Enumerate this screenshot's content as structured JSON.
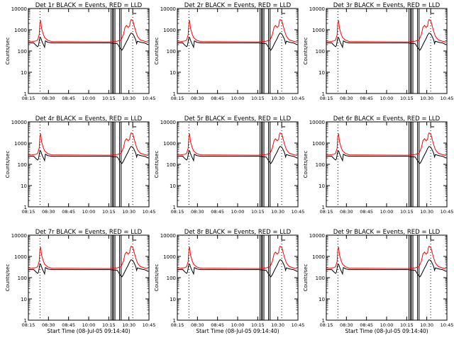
{
  "chart_data": {
    "type": "line",
    "yscale": "log",
    "ylim": [
      1,
      10000
    ],
    "yticks": [
      1,
      10,
      100,
      1000,
      10000
    ],
    "ytick_labels": [
      "1",
      "10",
      "100",
      "1000",
      "10000"
    ],
    "ylabel": "Counts/sec",
    "xlim_hours": [
      8.25,
      10.85
    ],
    "xtick_labels": [
      "08:15",
      "08:30",
      "08:45",
      "10:00",
      "10:15",
      "10:30",
      "10:45"
    ],
    "xlabel": "Start Time (08-Jul-05 09:14:40)",
    "colors": {
      "events": "#000000",
      "lld": "#ff0000"
    },
    "dotted_lines_at": [
      "08:30",
      "10:30"
    ],
    "panels": [
      {
        "title": "Det 1r BLACK = Events, RED = LLD",
        "show_xlabel": false
      },
      {
        "title": "Det 2r BLACK = Events, RED = LLD",
        "show_xlabel": false
      },
      {
        "title": "Det 3r BLACK = Events, RED = LLD",
        "show_xlabel": false
      },
      {
        "title": "Det 4r BLACK = Events, RED = LLD",
        "show_xlabel": false
      },
      {
        "title": "Det 5r BLACK = Events, RED = LLD",
        "show_xlabel": false
      },
      {
        "title": "Det 6r BLACK = Events, RED = LLD",
        "show_xlabel": false
      },
      {
        "title": "Det 7r BLACK = Events, RED = LLD",
        "show_xlabel": true
      },
      {
        "title": "Det 8r BLACK = Events, RED = LLD",
        "show_xlabel": true
      },
      {
        "title": "Det 9r BLACK = Events, RED = LLD",
        "show_xlabel": true
      }
    ],
    "series": [
      {
        "name": "LLD",
        "color": "#ff0000",
        "x": [
          "08:15",
          "08:20",
          "08:25",
          "08:27",
          "08:29",
          "08:30",
          "08:31",
          "08:32",
          "08:34",
          "08:36",
          "08:40",
          "08:45",
          "09:55",
          "10:00",
          "10:05",
          "10:10",
          "10:15",
          "10:18",
          "10:20",
          "10:22",
          "10:24",
          "10:26",
          "10:27",
          "10:28",
          "10:30",
          "10:32",
          "10:34",
          "10:36",
          "10:38",
          "10:40",
          "10:45",
          "10:50"
        ],
        "values": [
          270,
          280,
          300,
          330,
          600,
          2300,
          2600,
          1200,
          650,
          430,
          320,
          280,
          270,
          270,
          280,
          290,
          330,
          600,
          1300,
          1600,
          1300,
          1500,
          2500,
          3000,
          2800,
          1500,
          800,
          500,
          400,
          330,
          290,
          260
        ]
      },
      {
        "name": "Events",
        "color": "#000000",
        "x": [
          "08:15",
          "08:22",
          "08:24",
          "08:26",
          "08:27",
          "08:28",
          "08:29",
          "08:30",
          "08:31",
          "08:33",
          "08:36",
          "08:37",
          "08:40",
          "08:45",
          "09:55",
          "10:00",
          "10:05",
          "10:10",
          "10:12",
          "10:14",
          "10:16",
          "10:18",
          "10:20",
          "10:22",
          "10:24",
          "10:26",
          "10:28",
          "10:30",
          "10:32",
          "10:34",
          "10:35",
          "10:36",
          "10:40",
          "10:45",
          "10:50"
        ],
        "values": [
          240,
          240,
          200,
          170,
          160,
          180,
          280,
          450,
          420,
          260,
          150,
          300,
          260,
          240,
          240,
          240,
          230,
          220,
          170,
          130,
          110,
          140,
          200,
          280,
          380,
          560,
          700,
          650,
          480,
          320,
          220,
          290,
          260,
          240,
          200
        ]
      }
    ],
    "rectangles": [
      {
        "x0": "10:02",
        "x1": "10:04"
      },
      {
        "x0": "10:05",
        "x1": "10:07"
      },
      {
        "x0": "10:13",
        "x1": "10:15"
      }
    ]
  }
}
